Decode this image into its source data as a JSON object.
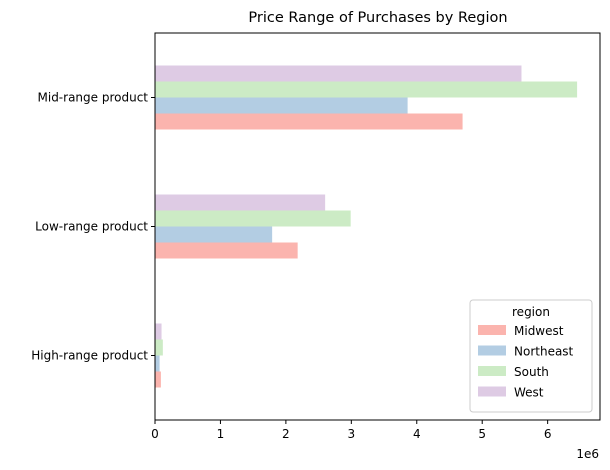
{
  "chart_data": {
    "type": "bar",
    "orientation": "horizontal",
    "title": "Price Range of Purchases by Region",
    "xlabel": "",
    "ylabel": "",
    "x_scale_label": "1e6",
    "xlim": [
      0,
      6.8
    ],
    "x_ticks": [
      "0",
      "1",
      "2",
      "3",
      "4",
      "5",
      "6"
    ],
    "categories": [
      "Mid-range product",
      "Low-range product",
      "High-range product"
    ],
    "legend_title": "region",
    "legend_position": "lower-right",
    "series": [
      {
        "name": "Midwest",
        "color": "#fbb4ae",
        "values": [
          4.7,
          2.18,
          0.09
        ]
      },
      {
        "name": "Northeast",
        "color": "#b3cde3",
        "values": [
          3.86,
          1.79,
          0.07
        ]
      },
      {
        "name": "South",
        "color": "#ccebc5",
        "values": [
          6.45,
          2.99,
          0.12
        ]
      },
      {
        "name": "West",
        "color": "#decbe4",
        "values": [
          5.6,
          2.6,
          0.1
        ]
      }
    ]
  }
}
